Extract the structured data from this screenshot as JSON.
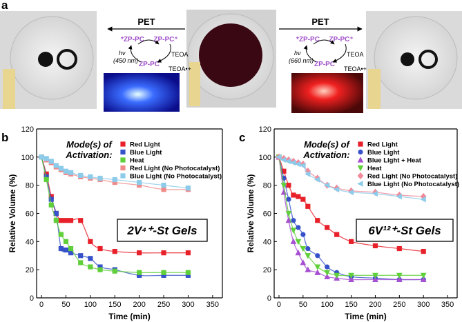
{
  "panel_letters": [
    "a",
    "b",
    "c"
  ],
  "panel_a": {
    "left": {
      "pet": "PET",
      "excited": "*ZP-PC",
      "oxidized": "ZP-PC⁺",
      "ground": "ZP-PC",
      "donor": "TEOA",
      "donor_ox": "TEOA•+",
      "light_1": "hν",
      "light_2": "(450 nm)"
    },
    "right": {
      "pet": "PET",
      "excited": "*ZP-PC",
      "oxidized": "ZP-PC⁺",
      "ground": "ZP-PC",
      "donor": "TEOA",
      "donor_ox": "TEOA•+",
      "light_1": "hν",
      "light_2": "(660 nm)"
    }
  },
  "chart_data": [
    {
      "type": "scatter",
      "legend_title": "Mode(s) of Activation:",
      "annotation": "2V⁴⁺-St Gels",
      "xlabel": "Time (min)",
      "ylabel": "Relative Volume (%)",
      "xlim": [
        -10,
        370
      ],
      "xticks": [
        0,
        50,
        100,
        150,
        200,
        250,
        300,
        350
      ],
      "ylim": [
        0,
        120
      ],
      "yticks": [
        0,
        20,
        40,
        60,
        80,
        100,
        120
      ],
      "x": [
        0,
        10,
        20,
        30,
        40,
        50,
        60,
        80,
        100,
        120,
        150,
        200,
        250,
        300
      ],
      "series": [
        {
          "name": "Red Light",
          "color": "#e8202a",
          "marker": "square",
          "values": [
            100,
            88,
            72,
            60,
            55,
            55,
            55,
            55,
            40,
            35,
            33,
            32,
            32,
            32
          ]
        },
        {
          "name": "Blue Light",
          "color": "#3651c9",
          "marker": "square",
          "values": [
            100,
            86,
            70,
            60,
            35,
            34,
            32,
            30,
            28,
            22,
            20,
            16,
            16,
            16
          ]
        },
        {
          "name": "Heat",
          "color": "#5fcf3a",
          "marker": "square",
          "values": [
            100,
            84,
            66,
            55,
            45,
            40,
            35,
            25,
            22,
            20,
            19,
            18,
            18,
            18
          ]
        },
        {
          "name": "Red Light (No Photocatalyst)",
          "color": "#f08a8a",
          "marker": "square",
          "values": [
            100,
            98,
            96,
            93,
            91,
            89,
            88,
            86,
            85,
            84,
            82,
            80,
            77,
            77
          ]
        },
        {
          "name": "Blue Light (No Photocatalyst)",
          "color": "#8ccbea",
          "marker": "square",
          "values": [
            100,
            99,
            97,
            94,
            92,
            90,
            89,
            87,
            86,
            85,
            84,
            82,
            80,
            78
          ]
        }
      ]
    },
    {
      "type": "scatter",
      "legend_title": "Mode(s) of Activation:",
      "annotation": "6V¹²⁺-St Gels",
      "xlabel": "Time (min)",
      "ylabel": "Relative Volume (%)",
      "xlim": [
        -10,
        370
      ],
      "xticks": [
        0,
        50,
        100,
        150,
        200,
        250,
        300,
        350
      ],
      "ylim": [
        0,
        120
      ],
      "yticks": [
        0,
        20,
        40,
        60,
        80,
        100,
        120
      ],
      "x": [
        0,
        10,
        20,
        30,
        40,
        50,
        60,
        80,
        100,
        120,
        150,
        200,
        250,
        300
      ],
      "series": [
        {
          "name": "Red Light",
          "color": "#e8202a",
          "marker": "square",
          "values": [
            100,
            90,
            80,
            73,
            72,
            70,
            65,
            55,
            50,
            45,
            40,
            37,
            35,
            33
          ]
        },
        {
          "name": "Blue Light",
          "color": "#3651c9",
          "marker": "circle",
          "values": [
            100,
            85,
            70,
            55,
            50,
            45,
            35,
            30,
            22,
            18,
            15,
            14,
            13,
            13
          ]
        },
        {
          "name": "Blue Light + Heat",
          "color": "#a64fd1",
          "marker": "triangle-up",
          "values": [
            100,
            75,
            55,
            40,
            32,
            25,
            20,
            18,
            15,
            14,
            13,
            13,
            13,
            13
          ]
        },
        {
          "name": "Heat",
          "color": "#5fcf3a",
          "marker": "triangle-down",
          "values": [
            100,
            80,
            60,
            48,
            40,
            35,
            30,
            22,
            18,
            16,
            16,
            16,
            16,
            16
          ]
        },
        {
          "name": "Red Light (No Photocatalyst)",
          "color": "#f08a9a",
          "marker": "diamond",
          "values": [
            100,
            99,
            98,
            97,
            96,
            95,
            90,
            85,
            80,
            78,
            76,
            75,
            73,
            72
          ]
        },
        {
          "name": "Blue Light (No Photocatalyst)",
          "color": "#8ccbea",
          "marker": "triangle-left",
          "values": [
            100,
            98,
            97,
            96,
            95,
            94,
            88,
            84,
            80,
            77,
            75,
            74,
            72,
            70
          ]
        }
      ]
    }
  ]
}
